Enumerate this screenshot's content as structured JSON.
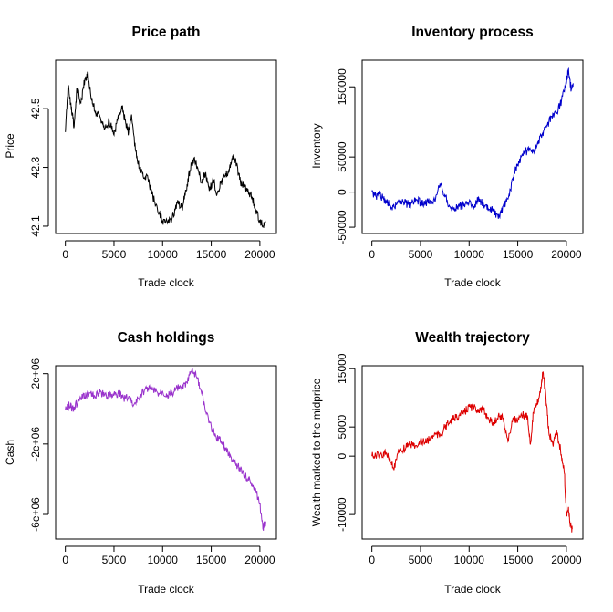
{
  "chart_data": [
    {
      "id": "price",
      "type": "line",
      "title": "Price path",
      "xlabel": "Trade clock",
      "ylabel": "Price",
      "color": "#000000",
      "xlim": [
        -1000,
        21700
      ],
      "ylim": [
        42.075,
        42.665
      ],
      "xticks": [
        0,
        5000,
        10000,
        15000,
        20000
      ],
      "xtick_labels": [
        "0",
        "5000",
        "10000",
        "15000",
        "20000"
      ],
      "yticks": [
        42.1,
        42.3,
        42.5
      ],
      "ytick_labels": [
        "42.1",
        "42.3",
        "42.5"
      ],
      "x": [
        0,
        300,
        600,
        900,
        1200,
        1600,
        2000,
        2300,
        2700,
        3100,
        3600,
        4000,
        4500,
        5000,
        5400,
        5800,
        6200,
        6500,
        6800,
        7200,
        7600,
        8000,
        8500,
        9000,
        9500,
        10000,
        10500,
        11000,
        11500,
        12000,
        12400,
        12800,
        13200,
        13600,
        14000,
        14400,
        14800,
        15200,
        15600,
        16000,
        16400,
        16800,
        17200,
        17600,
        18000,
        18400,
        18800,
        19200,
        19600,
        20000,
        20300,
        20600
      ],
      "y": [
        42.42,
        42.58,
        42.5,
        42.44,
        42.57,
        42.52,
        42.6,
        42.62,
        42.53,
        42.49,
        42.47,
        42.43,
        42.46,
        42.41,
        42.47,
        42.51,
        42.45,
        42.42,
        42.48,
        42.36,
        42.3,
        42.27,
        42.26,
        42.2,
        42.15,
        42.12,
        42.11,
        42.13,
        42.18,
        42.16,
        42.22,
        42.29,
        42.33,
        42.3,
        42.25,
        42.28,
        42.22,
        42.26,
        42.21,
        42.25,
        42.27,
        42.29,
        42.34,
        42.31,
        42.25,
        42.24,
        42.22,
        42.2,
        42.15,
        42.12,
        42.1,
        42.11
      ]
    },
    {
      "id": "inventory",
      "type": "line",
      "title": "Inventory process",
      "xlabel": "Trade clock",
      "ylabel": "Inventory",
      "color": "#0000cc",
      "xlim": [
        -1000,
        21700
      ],
      "ylim": [
        -59000,
        188000
      ],
      "xticks": [
        0,
        5000,
        10000,
        15000,
        20000
      ],
      "xtick_labels": [
        "0",
        "5000",
        "10000",
        "15000",
        "20000"
      ],
      "yticks": [
        -50000,
        0,
        50000,
        150000
      ],
      "ytick_labels": [
        "-50000",
        "0",
        "50000",
        "150000"
      ],
      "x": [
        0,
        400,
        800,
        1200,
        1600,
        2000,
        2500,
        3000,
        3500,
        4000,
        4500,
        5000,
        5500,
        6000,
        6500,
        7000,
        7500,
        8000,
        8500,
        9000,
        9500,
        10000,
        10500,
        11000,
        11500,
        12000,
        12500,
        13000,
        13500,
        14000,
        14500,
        15000,
        15500,
        16000,
        16500,
        17000,
        17500,
        18000,
        18500,
        19000,
        19500,
        20000,
        20200,
        20500,
        20700
      ],
      "y": [
        0,
        -6000,
        -3000,
        -10000,
        -14000,
        -22000,
        -18000,
        -12000,
        -16000,
        -18000,
        -10000,
        -15000,
        -17000,
        -12000,
        -14000,
        12000,
        -4000,
        -20000,
        -25000,
        -20000,
        -18000,
        -14000,
        -20000,
        -8000,
        -20000,
        -24000,
        -26000,
        -38000,
        -20000,
        -10000,
        20000,
        40000,
        52000,
        60000,
        55000,
        68000,
        82000,
        95000,
        108000,
        112000,
        130000,
        155000,
        175000,
        145000,
        155000
      ]
    },
    {
      "id": "cash",
      "type": "line",
      "title": "Cash holdings",
      "xlabel": "Trade clock",
      "ylabel": "Cash",
      "color": "#9932cc",
      "xlim": [
        -1000,
        21700
      ],
      "ylim": [
        -7400000,
        2450000
      ],
      "xticks": [
        0,
        5000,
        10000,
        15000,
        20000
      ],
      "xtick_labels": [
        "0",
        "5000",
        "10000",
        "15000",
        "20000"
      ],
      "yticks": [
        -6000000,
        -2000000,
        2000000
      ],
      "ytick_labels": [
        "-6e+06",
        "-2e+06",
        "2e+06"
      ],
      "x": [
        0,
        400,
        800,
        1200,
        1600,
        2000,
        2500,
        3000,
        3500,
        4000,
        4500,
        5000,
        5500,
        6000,
        6500,
        7000,
        7500,
        8000,
        8500,
        9000,
        9500,
        10000,
        10500,
        11000,
        11500,
        12000,
        12500,
        13000,
        13500,
        14000,
        14500,
        15000,
        15500,
        16000,
        16500,
        17000,
        17500,
        18000,
        18500,
        19000,
        19500,
        20000,
        20300,
        20600
      ],
      "y": [
        -50000,
        200000,
        50000,
        300000,
        600000,
        700000,
        900000,
        750000,
        900000,
        800000,
        700000,
        900000,
        850000,
        600000,
        700000,
        200000,
        600000,
        1000000,
        1200000,
        1100000,
        900000,
        1000000,
        800000,
        900000,
        1200000,
        1150000,
        1500000,
        2200000,
        1800000,
        900000,
        -300000,
        -1000000,
        -1600000,
        -1800000,
        -2300000,
        -2700000,
        -3100000,
        -3400000,
        -3800000,
        -4100000,
        -4500000,
        -5400000,
        -6800000,
        -6400000
      ]
    },
    {
      "id": "wealth",
      "type": "line",
      "title": "Wealth trajectory",
      "xlabel": "Trade clock",
      "ylabel": "Wealth marked to the midprice",
      "color": "#dd0000",
      "xlim": [
        -1000,
        21700
      ],
      "ylim": [
        -14200,
        15500
      ],
      "xticks": [
        0,
        5000,
        10000,
        15000,
        20000
      ],
      "xtick_labels": [
        "0",
        "5000",
        "10000",
        "15000",
        "20000"
      ],
      "yticks": [
        -10000,
        0,
        5000,
        15000
      ],
      "ytick_labels": [
        "-10000",
        "0",
        "5000",
        "15000"
      ],
      "x": [
        0,
        500,
        1000,
        1500,
        2000,
        2300,
        2600,
        3000,
        3500,
        4000,
        4500,
        5000,
        5500,
        6000,
        6500,
        7000,
        7500,
        8000,
        8500,
        9000,
        9500,
        10000,
        10500,
        11000,
        11500,
        12000,
        12500,
        13000,
        13500,
        14000,
        14500,
        15000,
        15500,
        16000,
        16300,
        16600,
        17000,
        17300,
        17600,
        17900,
        18200,
        18600,
        19000,
        19400,
        19800,
        20000,
        20200,
        20400,
        20600
      ],
      "y": [
        0,
        200,
        300,
        500,
        -1200,
        -2000,
        200,
        1000,
        1500,
        2000,
        1800,
        2800,
        2300,
        3000,
        3800,
        3500,
        5000,
        5800,
        6500,
        7000,
        7500,
        8500,
        8300,
        8000,
        7800,
        6500,
        5500,
        7000,
        6500,
        2500,
        6500,
        6000,
        7000,
        7000,
        2000,
        7500,
        9000,
        11000,
        14500,
        10000,
        4000,
        2000,
        4500,
        1000,
        -3000,
        -10000,
        -9000,
        -12000,
        -12500
      ]
    }
  ]
}
